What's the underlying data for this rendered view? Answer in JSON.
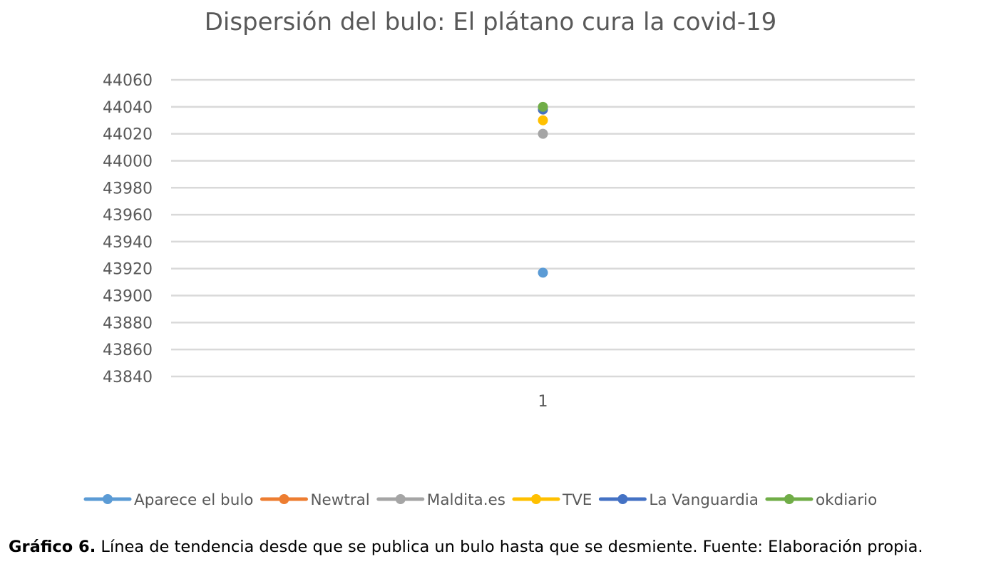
{
  "chart_data": {
    "type": "line",
    "title": "Dispersión del bulo: El plátano cura la covid-19",
    "xlabel": "",
    "ylabel": "",
    "categories": [
      "1"
    ],
    "y_ticks": [
      "43840",
      "43860",
      "43880",
      "43900",
      "43920",
      "43940",
      "43960",
      "43980",
      "44000",
      "44020",
      "44040",
      "44060"
    ],
    "ylim": [
      43840,
      44060
    ],
    "grid": true,
    "legend_position": "bottom",
    "series": [
      {
        "name": "Aparece el bulo",
        "values": [
          43917
        ],
        "color": "#5B9BD5"
      },
      {
        "name": "Newtral",
        "values": [
          44038
        ],
        "color": "#ED7D31"
      },
      {
        "name": "Maldita.es",
        "values": [
          44020
        ],
        "color": "#A5A5A5"
      },
      {
        "name": "TVE",
        "values": [
          44030
        ],
        "color": "#FFC000"
      },
      {
        "name": "La Vanguardia",
        "values": [
          44038
        ],
        "color": "#4472C4"
      },
      {
        "name": "okdiario",
        "values": [
          44040
        ],
        "color": "#70AD47"
      }
    ]
  },
  "caption": {
    "label": "Gráfico 6.",
    "text": " Línea de tendencia desde que se publica un bulo hasta que se desmiente. Fuente: Elaboración propia."
  }
}
